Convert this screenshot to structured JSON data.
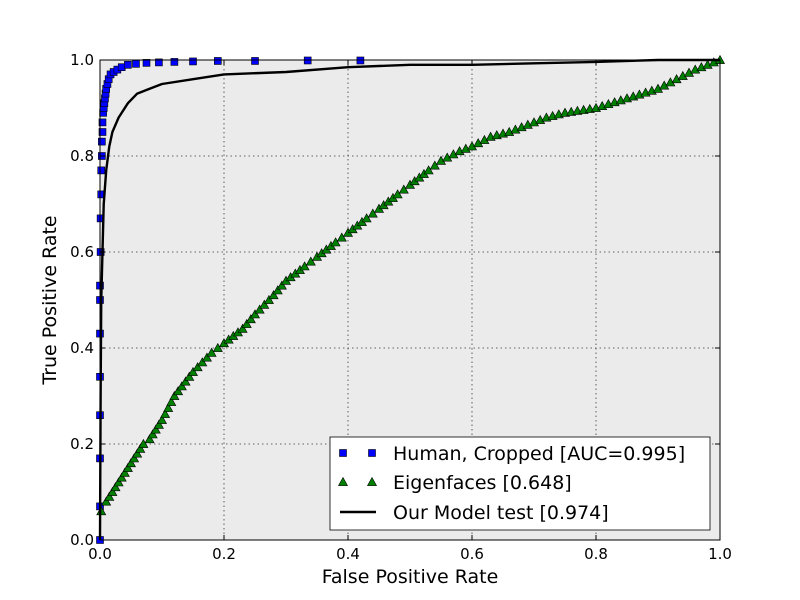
{
  "chart_data": {
    "type": "line",
    "title": "",
    "xlabel": "False Positive Rate",
    "ylabel": "True Positive Rate",
    "xlim": [
      0.0,
      1.0
    ],
    "ylim": [
      0.0,
      1.0
    ],
    "x_ticks": [
      "0.0",
      "0.2",
      "0.4",
      "0.6",
      "0.8",
      "1.0"
    ],
    "y_ticks": [
      "0.0",
      "0.2",
      "0.4",
      "0.6",
      "0.8",
      "1.0"
    ],
    "grid": true,
    "background": "#ebebeb",
    "legend_position": "lower-right",
    "series": [
      {
        "name": "Human, Cropped [AUC=0.995]",
        "marker": "square",
        "color": "#0000ff",
        "points": [
          [
            0.0,
            0.0
          ],
          [
            0.0,
            0.07
          ],
          [
            0.0,
            0.17
          ],
          [
            0.0,
            0.26
          ],
          [
            0.0,
            0.34
          ],
          [
            0.0,
            0.43
          ],
          [
            0.0,
            0.5
          ],
          [
            0.0,
            0.53
          ],
          [
            0.001,
            0.6
          ],
          [
            0.001,
            0.67
          ],
          [
            0.002,
            0.72
          ],
          [
            0.002,
            0.77
          ],
          [
            0.003,
            0.8
          ],
          [
            0.003,
            0.83
          ],
          [
            0.004,
            0.85
          ],
          [
            0.004,
            0.87
          ],
          [
            0.005,
            0.89
          ],
          [
            0.006,
            0.9
          ],
          [
            0.007,
            0.91
          ],
          [
            0.008,
            0.92
          ],
          [
            0.009,
            0.93
          ],
          [
            0.01,
            0.94
          ],
          [
            0.012,
            0.95
          ],
          [
            0.014,
            0.96
          ],
          [
            0.017,
            0.97
          ],
          [
            0.022,
            0.975
          ],
          [
            0.028,
            0.98
          ],
          [
            0.035,
            0.985
          ],
          [
            0.045,
            0.99
          ],
          [
            0.058,
            0.992
          ],
          [
            0.075,
            0.994
          ],
          [
            0.095,
            0.995
          ],
          [
            0.12,
            0.996
          ],
          [
            0.15,
            0.997
          ],
          [
            0.19,
            0.998
          ],
          [
            0.25,
            0.998
          ],
          [
            0.335,
            0.999
          ],
          [
            0.42,
            0.999
          ]
        ]
      },
      {
        "name": "Eigenfaces [0.648]",
        "marker": "triangle",
        "color": "#008000",
        "points": [
          [
            0.002,
            0.06
          ],
          [
            0.01,
            0.08
          ],
          [
            0.02,
            0.1
          ],
          [
            0.035,
            0.13
          ],
          [
            0.05,
            0.16
          ],
          [
            0.06,
            0.18
          ],
          [
            0.07,
            0.2
          ],
          [
            0.08,
            0.21
          ],
          [
            0.1,
            0.25
          ],
          [
            0.12,
            0.3
          ],
          [
            0.15,
            0.35
          ],
          [
            0.18,
            0.39
          ],
          [
            0.2,
            0.41
          ],
          [
            0.23,
            0.44
          ],
          [
            0.25,
            0.47
          ],
          [
            0.28,
            0.51
          ],
          [
            0.3,
            0.54
          ],
          [
            0.33,
            0.57
          ],
          [
            0.35,
            0.59
          ],
          [
            0.38,
            0.62
          ],
          [
            0.4,
            0.64
          ],
          [
            0.43,
            0.67
          ],
          [
            0.45,
            0.69
          ],
          [
            0.48,
            0.72
          ],
          [
            0.5,
            0.74
          ],
          [
            0.53,
            0.77
          ],
          [
            0.55,
            0.79
          ],
          [
            0.58,
            0.81
          ],
          [
            0.6,
            0.82
          ],
          [
            0.63,
            0.84
          ],
          [
            0.66,
            0.85
          ],
          [
            0.7,
            0.87
          ],
          [
            0.72,
            0.88
          ],
          [
            0.75,
            0.89
          ],
          [
            0.8,
            0.9
          ],
          [
            0.85,
            0.92
          ],
          [
            0.9,
            0.94
          ],
          [
            0.93,
            0.96
          ],
          [
            0.96,
            0.98
          ],
          [
            0.98,
            0.99
          ],
          [
            1.0,
            1.0
          ]
        ]
      },
      {
        "name": "Our Model test [0.974]",
        "marker": "none",
        "color": "#000000",
        "points": [
          [
            0.0,
            0.0
          ],
          [
            0.001,
            0.3
          ],
          [
            0.002,
            0.5
          ],
          [
            0.004,
            0.6
          ],
          [
            0.006,
            0.7
          ],
          [
            0.01,
            0.77
          ],
          [
            0.015,
            0.82
          ],
          [
            0.02,
            0.85
          ],
          [
            0.03,
            0.88
          ],
          [
            0.045,
            0.91
          ],
          [
            0.06,
            0.93
          ],
          [
            0.08,
            0.94
          ],
          [
            0.1,
            0.95
          ],
          [
            0.15,
            0.96
          ],
          [
            0.2,
            0.97
          ],
          [
            0.3,
            0.975
          ],
          [
            0.4,
            0.985
          ],
          [
            0.5,
            0.99
          ],
          [
            0.6,
            0.99
          ],
          [
            0.7,
            0.993
          ],
          [
            0.8,
            0.996
          ],
          [
            0.9,
            1.0
          ],
          [
            1.0,
            1.0
          ]
        ]
      }
    ]
  }
}
